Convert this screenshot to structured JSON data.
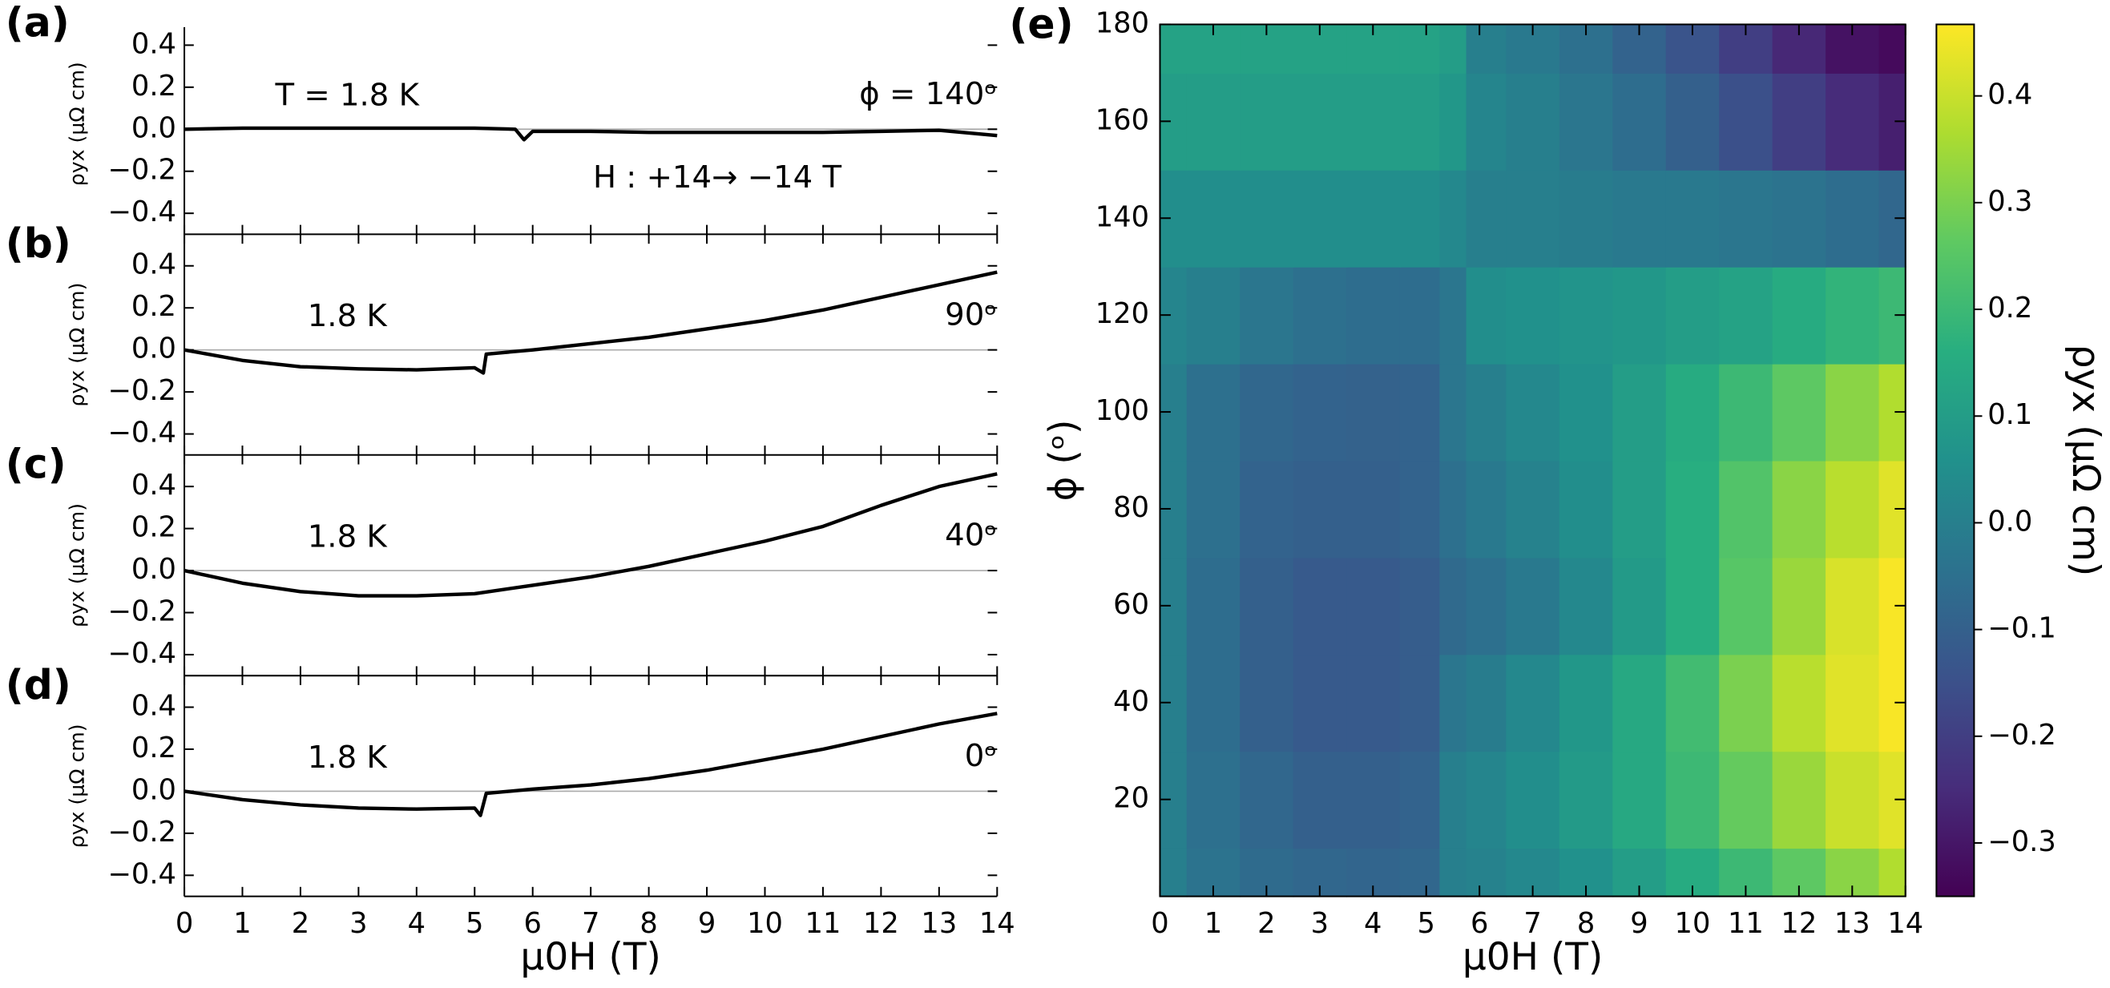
{
  "chart_data": [
    {
      "type": "line",
      "xlabel": "μ0H (T)",
      "ylabel": "ρyx (μΩ cm)",
      "color": "#000000",
      "xlim": [
        0,
        14
      ],
      "xticks": [
        0,
        1,
        2,
        3,
        4,
        5,
        6,
        7,
        8,
        9,
        10,
        11,
        12,
        13,
        14
      ],
      "ylim": [
        -0.5,
        0.55
      ],
      "yticks": [
        0.4,
        0.2,
        {
          "value": 0,
          "label": "0.0"
        },
        {
          "value": -0.2,
          "label": "−0.2"
        },
        {
          "value": -0.4,
          "label": "−0.4"
        }
      ],
      "panels": [
        {
          "label": "(a)",
          "annotations": [
            "T = 1.8 K",
            "ϕ = 140ᵒ",
            "H : +14→ −14 T"
          ],
          "x": [
            0,
            1,
            2,
            3,
            4,
            5,
            5.7,
            5.85,
            6,
            7,
            8,
            9,
            10,
            11,
            12,
            13,
            14
          ],
          "values": [
            0,
            0.005,
            0.005,
            0.005,
            0.005,
            0.005,
            0,
            -0.05,
            -0.01,
            -0.01,
            -0.015,
            -0.015,
            -0.015,
            -0.015,
            -0.01,
            -0.005,
            -0.03
          ]
        },
        {
          "label": "(b)",
          "annotations": [
            "1.8 K",
            "90ᵒ"
          ],
          "x": [
            0,
            1,
            2,
            3,
            4,
            5,
            5.15,
            5.2,
            6,
            7,
            8,
            9,
            10,
            11,
            12,
            13,
            14
          ],
          "values": [
            0,
            -0.05,
            -0.08,
            -0.09,
            -0.095,
            -0.085,
            -0.11,
            -0.02,
            0,
            0.03,
            0.06,
            0.1,
            0.14,
            0.19,
            0.25,
            0.31,
            0.37
          ]
        },
        {
          "label": "(c)",
          "annotations": [
            "1.8 K",
            "40ᵒ"
          ],
          "x": [
            0,
            1,
            2,
            3,
            4,
            5,
            6,
            7,
            8,
            9,
            10,
            11,
            12,
            13,
            14
          ],
          "values": [
            0,
            -0.06,
            -0.1,
            -0.12,
            -0.12,
            -0.11,
            -0.07,
            -0.03,
            0.02,
            0.08,
            0.14,
            0.21,
            0.31,
            0.4,
            0.46
          ]
        },
        {
          "label": "(d)",
          "annotations": [
            "1.8 K",
            "0ᵒ"
          ],
          "x": [
            0,
            1,
            2,
            3,
            4,
            5,
            5.1,
            5.2,
            6,
            7,
            8,
            9,
            10,
            11,
            12,
            13,
            14
          ],
          "values": [
            0,
            -0.04,
            -0.065,
            -0.08,
            -0.085,
            -0.08,
            -0.115,
            -0.01,
            0.01,
            0.03,
            0.06,
            0.1,
            0.15,
            0.2,
            0.26,
            0.32,
            0.37
          ]
        }
      ]
    },
    {
      "type": "heatmap",
      "label": "(e)",
      "xlabel": "μ0H (T)",
      "ylabel": "ϕ (ᵒ)",
      "colormap": "viridis",
      "xlim": [
        0,
        14
      ],
      "xticks": [
        0,
        1,
        2,
        3,
        4,
        5,
        6,
        7,
        8,
        9,
        10,
        11,
        12,
        13,
        14
      ],
      "ylim": [
        0,
        180
      ],
      "yticks": [
        20,
        40,
        60,
        80,
        100,
        120,
        140,
        160,
        180
      ],
      "x": [
        0,
        1,
        2,
        3,
        4,
        5,
        5.5,
        6,
        7,
        8,
        9,
        10,
        11,
        12,
        13,
        14
      ],
      "y": [
        0,
        20,
        40,
        60,
        80,
        100,
        120,
        140,
        160,
        180
      ],
      "z": [
        [
          0,
          -0.04,
          -0.065,
          -0.08,
          -0.085,
          -0.08,
          0,
          0.01,
          0.03,
          0.06,
          0.1,
          0.15,
          0.2,
          0.26,
          0.32,
          0.37
        ],
        [
          0,
          -0.05,
          -0.08,
          -0.1,
          -0.1,
          -0.09,
          0,
          0.02,
          0.05,
          0.09,
          0.14,
          0.2,
          0.27,
          0.34,
          0.4,
          0.43
        ],
        [
          0,
          -0.06,
          -0.1,
          -0.12,
          -0.12,
          -0.11,
          -0.03,
          -0.01,
          0.03,
          0.08,
          0.14,
          0.21,
          0.3,
          0.38,
          0.43,
          0.46
        ],
        [
          0,
          -0.06,
          -0.1,
          -0.12,
          -0.12,
          -0.11,
          -0.07,
          -0.05,
          -0.02,
          0.03,
          0.09,
          0.16,
          0.25,
          0.34,
          0.42,
          0.46
        ],
        [
          0,
          -0.05,
          -0.09,
          -0.1,
          -0.1,
          -0.09,
          -0.05,
          -0.02,
          0.01,
          0.05,
          0.1,
          0.16,
          0.24,
          0.32,
          0.38,
          0.43
        ],
        [
          0,
          -0.05,
          -0.08,
          -0.09,
          -0.095,
          -0.09,
          -0.03,
          0,
          0.03,
          0.06,
          0.1,
          0.15,
          0.2,
          0.26,
          0.32,
          0.37
        ],
        [
          0.02,
          0,
          -0.03,
          -0.05,
          -0.06,
          -0.06,
          -0.03,
          0.05,
          0.06,
          0.07,
          0.08,
          0.1,
          0.12,
          0.15,
          0.18,
          0.2
        ],
        [
          0.05,
          0.05,
          0.05,
          0.05,
          0.05,
          0.05,
          0.03,
          0,
          0,
          -0.01,
          -0.02,
          -0.02,
          -0.03,
          -0.04,
          -0.06,
          -0.08
        ],
        [
          0.1,
          0.1,
          0.1,
          0.1,
          0.1,
          0.1,
          0.08,
          0.02,
          0,
          -0.03,
          -0.06,
          -0.1,
          -0.15,
          -0.2,
          -0.25,
          -0.28
        ],
        [
          0.12,
          0.12,
          0.12,
          0.12,
          0.12,
          0.12,
          0.1,
          0,
          -0.02,
          -0.05,
          -0.09,
          -0.14,
          -0.2,
          -0.26,
          -0.31,
          -0.33
        ]
      ],
      "colorbar": {
        "label": "ρyx (μΩ cm)",
        "clim": [
          -0.35,
          0.467
        ],
        "ticks": [
          0.4,
          0.3,
          0.2,
          0.1,
          {
            "value": 0,
            "label": "0.0"
          },
          {
            "value": -0.1,
            "label": "−0.1"
          },
          {
            "value": -0.2,
            "label": "−0.2"
          },
          {
            "value": -0.3,
            "label": "−0.3"
          }
        ]
      }
    }
  ]
}
